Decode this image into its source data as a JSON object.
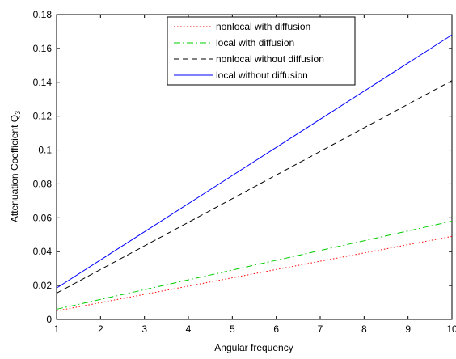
{
  "chart_data": {
    "type": "line",
    "xlabel": "Angular frequency",
    "ylabel": "Attenuation Coefficient Q",
    "ylabel_subscript": "3",
    "xlim": [
      1,
      10
    ],
    "ylim": [
      0,
      0.18
    ],
    "xticks": [
      1,
      2,
      3,
      4,
      5,
      6,
      7,
      8,
      9,
      10
    ],
    "xtick_labels": [
      "1",
      "2",
      "3",
      "4",
      "5",
      "6",
      "7",
      "8",
      "9",
      "10"
    ],
    "yticks": [
      0,
      0.02,
      0.04,
      0.06,
      0.08,
      0.1,
      0.12,
      0.14,
      0.16,
      0.18
    ],
    "ytick_labels": [
      "0",
      "0.02",
      "0.04",
      "0.06",
      "0.08",
      "0.1",
      "0.12",
      "0.14",
      "0.16",
      "0.18"
    ],
    "grid": false,
    "legend_position": "top-center",
    "series": [
      {
        "name": "nonlocal with diffusion",
        "x": [
          1,
          10
        ],
        "y": [
          0.005,
          0.049
        ],
        "color": "#ff0000",
        "style": "dotted"
      },
      {
        "name": "local with diffusion",
        "x": [
          1,
          10
        ],
        "y": [
          0.006,
          0.058
        ],
        "color": "#00cc00",
        "style": "dashdot"
      },
      {
        "name": "nonlocal without diffusion",
        "x": [
          1,
          10
        ],
        "y": [
          0.0155,
          0.141
        ],
        "color": "#000000",
        "style": "dashed"
      },
      {
        "name": "local without diffusion",
        "x": [
          1,
          10
        ],
        "y": [
          0.0185,
          0.168
        ],
        "color": "#0000ff",
        "style": "solid"
      }
    ]
  }
}
